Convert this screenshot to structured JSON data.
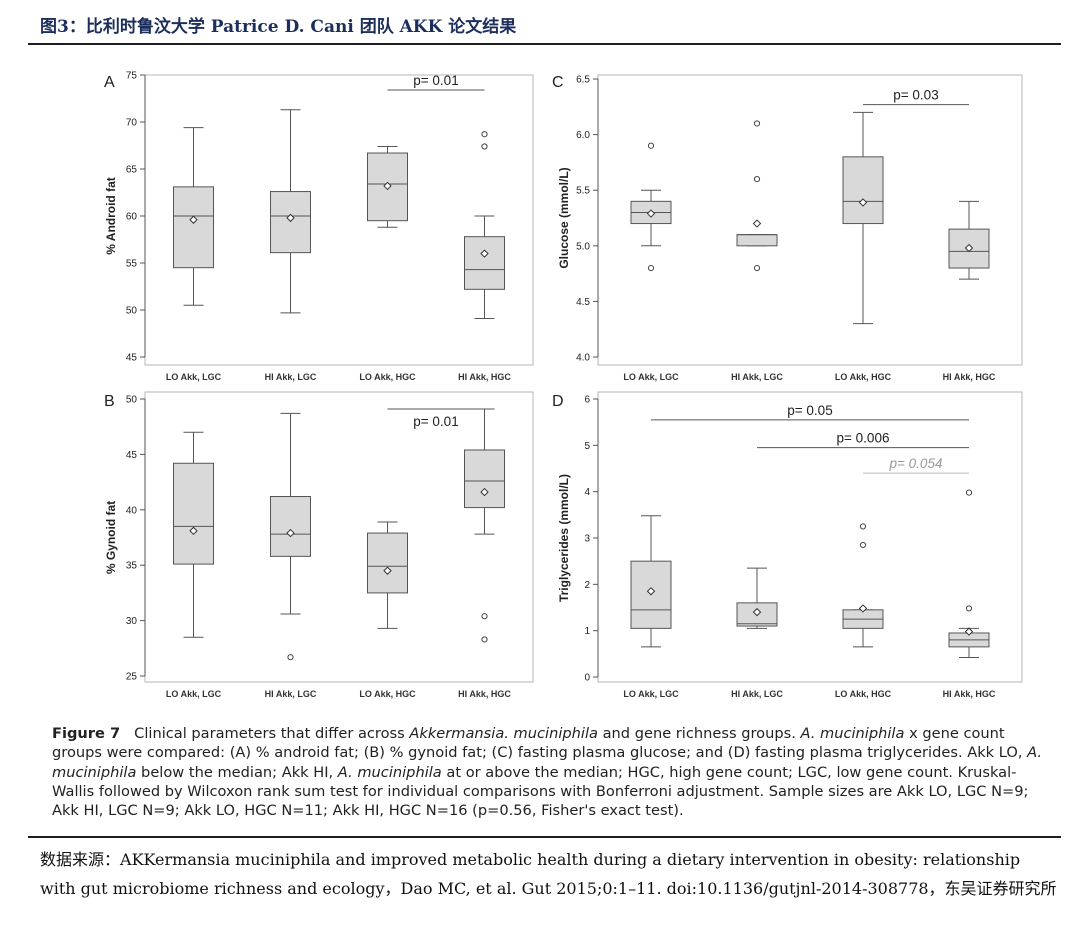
{
  "page_title": "图3：比利时鲁汶大学 Patrice D. Cani 团队 AKK 论文结果",
  "caption": {
    "figure_label": "Figure 7",
    "text_1": "Clinical parameters that differ across ",
    "italic_1": "Akkermansia. muciniphila",
    "text_2": " and gene richness groups. ",
    "italic_2": "A. muciniphila",
    "text_3": " x gene count groups were compared: (A) % android fat; (B) % gynoid fat; (C) fasting plasma glucose; and (D) fasting plasma triglycerides. Akk LO, ",
    "italic_3": "A. muciniphila",
    "text_4": " below the median; Akk HI, ",
    "italic_4": "A. muciniphila",
    "text_5": " at or above the median; HGC, high gene count; LGC, low gene count. Kruskal-Wallis followed by Wilcoxon rank sum test for individual comparisons with Bonferroni adjustment. Sample sizes are Akk LO, LGC N=9; Akk HI, LGC N=9; Akk LO, HGC N=11; Akk HI, HGC N=16 (p=0.56, Fisher's exact test)."
  },
  "source": {
    "label": "数据来源：",
    "text": "AKKermansia muciniphila and improved metabolic health during a dietary intervention in obesity: relationship with gut microbiome richness and ecology，Dao MC, et al. Gut 2015;0:1–11. doi:10.1136/gutjnl-2014-308778，",
    "suffix": "东吴证券研究所"
  },
  "colors": {
    "title": "#1c2f5c",
    "box_fill": "#d9d9d9",
    "stroke": "#555555",
    "gray_text": "#999999"
  },
  "chart_data": [
    {
      "panel": "A",
      "type": "box",
      "ylabel": "% Android fat",
      "ylim": [
        45,
        75
      ],
      "yticks": [
        45,
        50,
        55,
        60,
        65,
        70,
        75
      ],
      "categories": [
        "LO Akk, LGC",
        "HI Akk, LGC",
        "LO Akk, HGC",
        "HI Akk, HGC"
      ],
      "boxes": [
        {
          "min": 50.5,
          "q1": 54.5,
          "median": 60.0,
          "q3": 63.1,
          "max": 69.4,
          "mean": 59.6,
          "outliers": []
        },
        {
          "min": 49.7,
          "q1": 56.1,
          "median": 60.0,
          "q3": 62.6,
          "max": 71.3,
          "mean": 59.8,
          "outliers": []
        },
        {
          "min": 58.8,
          "q1": 59.5,
          "median": 63.4,
          "q3": 66.7,
          "max": 67.4,
          "mean": 63.2,
          "outliers": []
        },
        {
          "min": 49.1,
          "q1": 52.2,
          "median": 54.3,
          "q3": 57.8,
          "max": 60.0,
          "mean": 56.0,
          "outliers": [
            67.4,
            68.7
          ]
        }
      ],
      "annotations": [
        {
          "label": "p= 0.01",
          "from": 2,
          "to": 3,
          "y": 73.4,
          "gray": false
        }
      ]
    },
    {
      "panel": "B",
      "type": "box",
      "ylabel": "% Gynoid fat",
      "ylim": [
        25,
        50
      ],
      "yticks": [
        25,
        30,
        35,
        40,
        45,
        50
      ],
      "categories": [
        "LO Akk, LGC",
        "HI Akk, LGC",
        "LO Akk, HGC",
        "HI Akk, HGC"
      ],
      "boxes": [
        {
          "min": 28.5,
          "q1": 35.1,
          "median": 38.5,
          "q3": 44.2,
          "max": 47.0,
          "mean": 38.1,
          "outliers": []
        },
        {
          "min": 30.6,
          "q1": 35.8,
          "median": 37.8,
          "q3": 41.2,
          "max": 48.7,
          "mean": 37.9,
          "outliers": [
            26.7
          ]
        },
        {
          "min": 29.3,
          "q1": 32.5,
          "median": 34.9,
          "q3": 37.9,
          "max": 38.9,
          "mean": 34.5,
          "outliers": []
        },
        {
          "min": 37.8,
          "q1": 40.2,
          "median": 42.6,
          "q3": 45.4,
          "max": 49.1,
          "mean": 41.6,
          "outliers": [
            30.4,
            28.3
          ]
        }
      ],
      "annotations": [
        {
          "label": "p= 0.01",
          "from": 2,
          "to": 3,
          "y": 49.1,
          "gray": false
        }
      ]
    },
    {
      "panel": "C",
      "type": "box",
      "ylabel": "Glucose (mmol/L)",
      "ylim": [
        4.0,
        6.5
      ],
      "yticks": [
        "4.0",
        "4.5",
        "5.0",
        "5.5",
        "6.0",
        "6.5"
      ],
      "categories": [
        "LO Akk, LGC",
        "HI Akk, LGC",
        "LO Akk, HGC",
        "HI Akk, HGC"
      ],
      "boxes": [
        {
          "min": 5.0,
          "q1": 5.2,
          "median": 5.3,
          "q3": 5.4,
          "max": 5.5,
          "mean": 5.29,
          "outliers": [
            5.9,
            4.8
          ]
        },
        {
          "min": 5.0,
          "q1": 5.0,
          "median": 5.1,
          "q3": 5.1,
          "max": 5.1,
          "mean": 5.2,
          "outliers": [
            6.1,
            5.6,
            4.8
          ]
        },
        {
          "min": 4.3,
          "q1": 5.2,
          "median": 5.4,
          "q3": 5.8,
          "max": 6.2,
          "mean": 5.39,
          "outliers": []
        },
        {
          "min": 4.7,
          "q1": 4.8,
          "median": 4.95,
          "q3": 5.15,
          "max": 5.4,
          "mean": 4.98,
          "outliers": []
        }
      ],
      "annotations": [
        {
          "label": "p= 0.03",
          "from": 2,
          "to": 3,
          "y": 6.27,
          "gray": false
        }
      ]
    },
    {
      "panel": "D",
      "type": "box",
      "ylabel": "Triglycerides (mmol/L)",
      "ylim": [
        0,
        6
      ],
      "yticks": [
        0,
        1,
        2,
        3,
        4,
        5,
        6
      ],
      "categories": [
        "LO Akk, LGC",
        "HI Akk, LGC",
        "LO Akk, HGC",
        "HI Akk, HGC"
      ],
      "boxes": [
        {
          "min": 0.65,
          "q1": 1.05,
          "median": 1.45,
          "q3": 2.5,
          "max": 3.48,
          "mean": 1.85,
          "outliers": []
        },
        {
          "min": 1.05,
          "q1": 1.1,
          "median": 1.15,
          "q3": 1.6,
          "max": 2.35,
          "mean": 1.4,
          "outliers": []
        },
        {
          "min": 0.65,
          "q1": 1.05,
          "median": 1.25,
          "q3": 1.45,
          "max": 1.45,
          "mean": 1.48,
          "outliers": [
            3.25,
            2.85
          ]
        },
        {
          "min": 0.42,
          "q1": 0.65,
          "median": 0.8,
          "q3": 0.95,
          "max": 1.05,
          "mean": 0.98,
          "outliers": [
            3.98,
            1.48
          ]
        }
      ],
      "annotations": [
        {
          "label": "p= 0.05",
          "from": 0,
          "to": 3,
          "y": 5.55,
          "gray": false
        },
        {
          "label": "p= 0.006",
          "from": 1,
          "to": 3,
          "y": 4.95,
          "gray": false
        },
        {
          "label": "p= 0.054",
          "from": 2,
          "to": 3,
          "y": 4.4,
          "gray": true
        }
      ]
    }
  ]
}
